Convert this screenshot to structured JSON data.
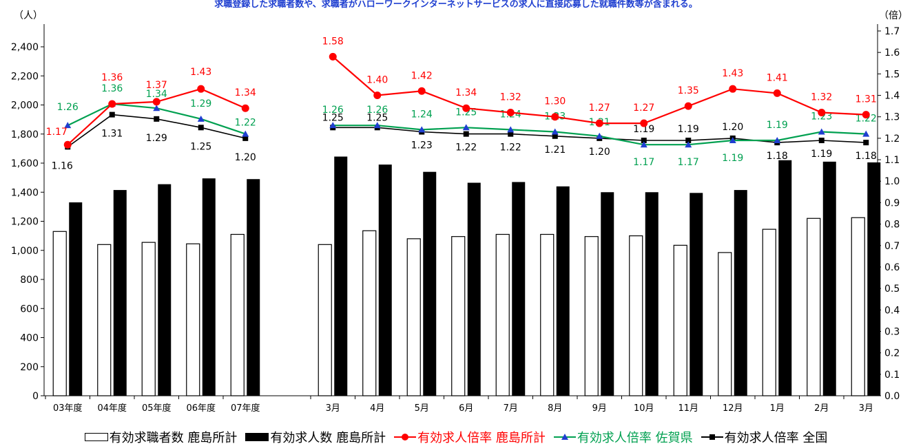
{
  "header": {
    "note": "求職登録した求職者数や、求職者がハローワークインターネットサービスの求人に直接応募した就職件数等が含まれる。",
    "unit_left": "（人）",
    "unit_right": "（倍）"
  },
  "colors": {
    "seeker_bar_fill": "#ffffff",
    "opening_bar_fill": "#000000",
    "kashima_line": "#ff0000",
    "saga_line": "#00a050",
    "saga_marker": "#1f3fd0",
    "national_line": "#000000"
  },
  "chart_data": {
    "type": "bar",
    "categories": [
      "03年度",
      "04年度",
      "05年度",
      "06年度",
      "07年度",
      "3月",
      "4月",
      "5月",
      "6月",
      "7月",
      "8月",
      "9月",
      "10月",
      "11月",
      "12月",
      "1月",
      "2月",
      "3月"
    ],
    "ylim_left": [
      0,
      2400
    ],
    "yticks_left": [
      0,
      200,
      400,
      600,
      800,
      1000,
      1200,
      1400,
      1600,
      1800,
      2000,
      2200,
      2400
    ],
    "ytick_labels_left": [
      "0",
      "200",
      "400",
      "600",
      "800",
      "1,000",
      "1,200",
      "1,400",
      "1,600",
      "1,800",
      "2,000",
      "2,200",
      "2,400"
    ],
    "ylim_right": [
      0.0,
      1.7
    ],
    "yticks_right": [
      0.0,
      0.1,
      0.2,
      0.3,
      0.4,
      0.5,
      0.6,
      0.7,
      0.8,
      0.9,
      1.0,
      1.1,
      1.2,
      1.3,
      1.4,
      1.5,
      1.6,
      1.7
    ],
    "ytick_labels_right": [
      "0.0",
      "0.1",
      "0.2",
      "0.3",
      "0.4",
      "0.5",
      "0.6",
      "0.7",
      "0.8",
      "0.9",
      "1.0",
      "1.1",
      "1.2",
      "1.3",
      "1.4",
      "1.5",
      "1.6",
      "1.7"
    ],
    "bar_series": [
      {
        "name": "有効求職者数 鹿島所計",
        "values": [
          1130,
          1040,
          1055,
          1045,
          1110,
          1040,
          1135,
          1080,
          1095,
          1110,
          1110,
          1095,
          1100,
          1035,
          985,
          1145,
          1220,
          1225
        ]
      },
      {
        "name": "有効求人数 鹿島所計",
        "values": [
          1330,
          1415,
          1455,
          1495,
          1490,
          1645,
          1590,
          1540,
          1465,
          1470,
          1440,
          1400,
          1400,
          1395,
          1415,
          1620,
          1610,
          1605
        ]
      }
    ],
    "line_series": [
      {
        "name": "有効求人倍率 鹿島所計",
        "values": [
          1.17,
          1.36,
          1.37,
          1.43,
          1.34,
          1.58,
          1.4,
          1.42,
          1.34,
          1.32,
          1.3,
          1.27,
          1.27,
          1.35,
          1.43,
          1.41,
          1.32,
          1.31
        ],
        "labels": [
          "1.17",
          "1.36",
          "1.37",
          "1.43",
          "1.34",
          "1.58",
          "1.40",
          "1.42",
          "1.34",
          "1.32",
          "1.30",
          "1.27",
          "1.27",
          "1.35",
          "1.43",
          "1.41",
          "1.32",
          "1.31"
        ]
      },
      {
        "name": "有効求人倍率 佐賀県",
        "values": [
          1.26,
          1.36,
          1.34,
          1.29,
          1.22,
          1.26,
          1.26,
          1.24,
          1.25,
          1.24,
          1.23,
          1.21,
          1.17,
          1.17,
          1.19,
          1.19,
          1.23,
          1.22
        ],
        "labels": [
          "1.26",
          "1.36",
          "1.34",
          "1.29",
          "1.22",
          "1.26",
          "1.26",
          "1.24",
          "1.25",
          "1.24",
          "1.23",
          "1.21",
          "1.17",
          "1.17",
          "1.19",
          "1.19",
          "1.23",
          "1.22"
        ]
      },
      {
        "name": "有効求人倍率 全国",
        "values": [
          1.16,
          1.31,
          1.29,
          1.25,
          1.2,
          1.25,
          1.25,
          1.23,
          1.22,
          1.22,
          1.21,
          1.2,
          1.19,
          1.19,
          1.2,
          1.18,
          1.19,
          1.18
        ],
        "labels": [
          "1.16",
          "1.31",
          "1.29",
          "1.25",
          "1.20",
          "1.25",
          "1.25",
          "1.23",
          "1.22",
          "1.22",
          "1.21",
          "1.20",
          "1.19",
          "1.19",
          "1.20",
          "1.18",
          "1.19",
          "1.18"
        ]
      }
    ],
    "legend_position": "bottom"
  },
  "legend": {
    "seekers": "有効求職者数 鹿島所計",
    "openings": "有効求人数 鹿島所計",
    "kashima": "有効求人倍率 鹿島所計",
    "saga": "有効求人倍率 佐賀県",
    "national": "有効求人倍率 全国"
  }
}
